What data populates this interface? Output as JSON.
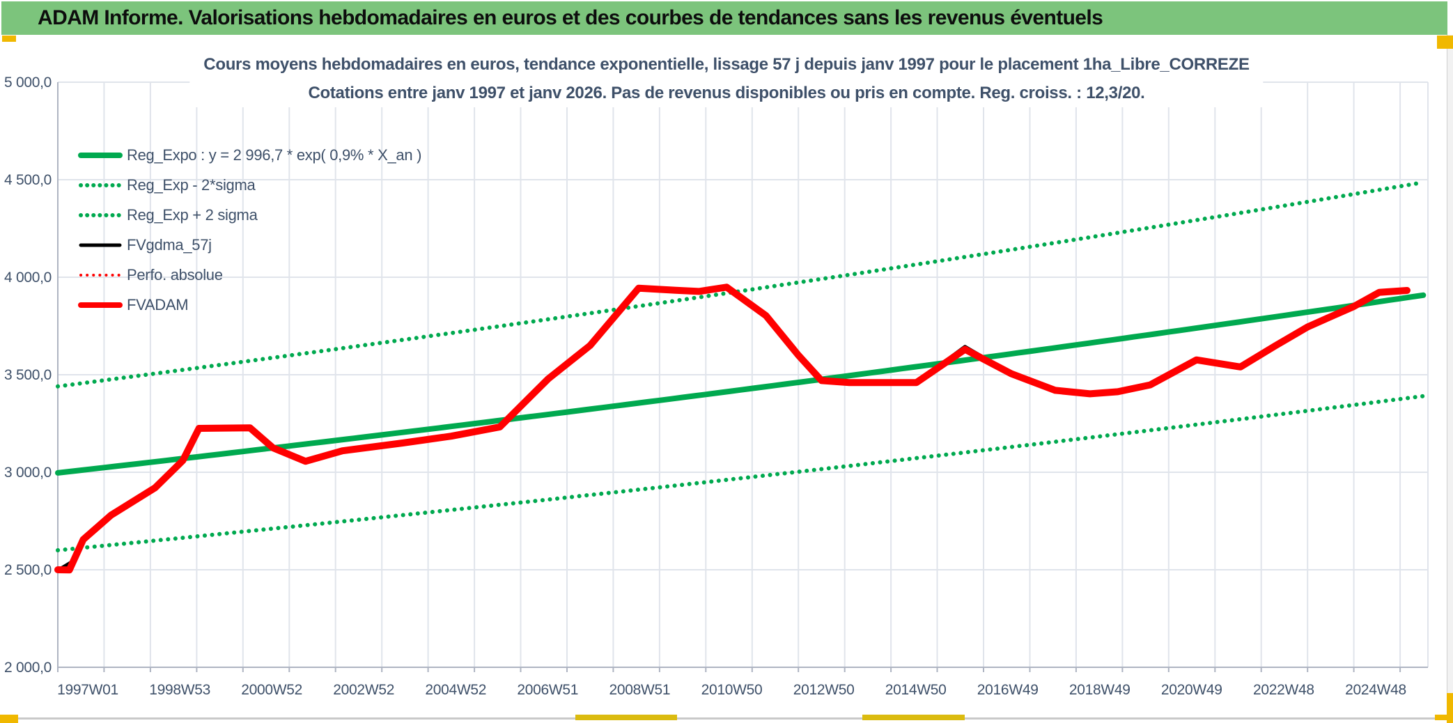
{
  "header": {
    "title": "ADAM Informe. Valorisations hebdomadaires en euros et des courbes de tendances sans les revenus éventuels"
  },
  "colors": {
    "header_green": "#7CC47C",
    "accent_yellow": "#F0B800",
    "accent_yellow_dark": "#DBBB10",
    "axis_text": "#3E5069",
    "gridline": "#E0E4EB",
    "axis_line": "#AEB4C2",
    "series_green": "#00A94F",
    "series_red": "#FF0000",
    "series_black": "#000000"
  },
  "chart_data": {
    "type": "line",
    "title_line1": "Cours moyens hebdomadaires en euros, tendance exponentielle, lissage 57 j depuis janv 1997 pour le placement 1ha_Libre_CORREZE",
    "title_line2": "Cotations entre janv 1997 et janv 2026. Pas de revenus disponibles ou pris en compte. Reg. croiss. : 12,3/20.",
    "ylim": [
      2000,
      5000
    ],
    "x_range_years": [
      1997,
      2026.5
    ],
    "grid": "both",
    "legend_position": "inside-top-left",
    "y_ticks": [
      {
        "value": 5000,
        "label": "5 000,0"
      },
      {
        "value": 4500,
        "label": "4 500,0"
      },
      {
        "value": 4000,
        "label": "4 000,0"
      },
      {
        "value": 3500,
        "label": "3 500,0"
      },
      {
        "value": 3000,
        "label": "3 000,0"
      },
      {
        "value": 2500,
        "label": "2 500,0"
      },
      {
        "value": 2000,
        "label": "2 000,0"
      }
    ],
    "x_ticks": [
      "1997W01",
      "1998W53",
      "2000W52",
      "2002W52",
      "2004W52",
      "2006W51",
      "2008W51",
      "2010W50",
      "2012W50",
      "2014W50",
      "2016W49",
      "2018W49",
      "2020W49",
      "2022W48",
      "2024W48"
    ],
    "series": [
      {
        "id": "reg-exp-minus-2sigma",
        "name": "Reg_Exp - 2*sigma",
        "color": "#00A94F",
        "width": 6,
        "dotted": true,
        "legend_order": 1,
        "exp": {
          "base": 2996.7,
          "rate_pct_per_year": 0.9,
          "factor": 0.8676
        }
      },
      {
        "id": "reg-exp-plus-2sigma",
        "name": "Reg_Exp + 2 sigma",
        "color": "#00A94F",
        "width": 6,
        "dotted": true,
        "legend_order": 2,
        "exp": {
          "base": 2996.7,
          "rate_pct_per_year": 0.9,
          "factor": 1.148
        }
      },
      {
        "id": "reg-expo",
        "name": "Reg_Expo : y = 2 996,7 * exp( 0,9% *  X_an )",
        "color": "#00A94F",
        "width": 8,
        "dotted": false,
        "legend_order": 0,
        "exp": {
          "base": 2996.7,
          "rate_pct_per_year": 0.9,
          "factor": 1.0
        }
      },
      {
        "id": "fvgdma-57j",
        "name": "FVgdma_57j",
        "color": "#000000",
        "width": 5,
        "dotted": false,
        "legend_order": 3,
        "points": [
          [
            1997.0,
            2497
          ],
          [
            1997.3,
            2540
          ],
          [
            1997.6,
            2668
          ],
          [
            1998.15,
            2784
          ],
          [
            1999.1,
            2922
          ],
          [
            1999.7,
            3062
          ],
          [
            2000.05,
            3229
          ],
          [
            2001.15,
            3231
          ],
          [
            2001.65,
            3127
          ],
          [
            2002.35,
            3059
          ],
          [
            2003.15,
            3112
          ],
          [
            2004.45,
            3152
          ],
          [
            2005.5,
            3187
          ],
          [
            2006.55,
            3235
          ],
          [
            2007.6,
            3483
          ],
          [
            2008.5,
            3652
          ],
          [
            2009.0,
            3792
          ],
          [
            2009.55,
            3950
          ],
          [
            2010.35,
            3936
          ],
          [
            2010.85,
            3929
          ],
          [
            2011.45,
            3954
          ],
          [
            2012.3,
            3805
          ],
          [
            2013.0,
            3602
          ],
          [
            2013.5,
            3480
          ],
          [
            2014.1,
            3462
          ],
          [
            2015.55,
            3462
          ],
          [
            2016.6,
            3644
          ],
          [
            2017.6,
            3507
          ],
          [
            2018.55,
            3422
          ],
          [
            2019.3,
            3404
          ],
          [
            2019.9,
            3415
          ],
          [
            2020.6,
            3450
          ],
          [
            2021.6,
            3580
          ],
          [
            2022.55,
            3542
          ],
          [
            2023.3,
            3650
          ],
          [
            2024.0,
            3747
          ],
          [
            2025.0,
            3852
          ],
          [
            2025.55,
            3927
          ],
          [
            2026.15,
            3934
          ]
        ]
      },
      {
        "id": "perfo-absolue",
        "name": "Perfo. absolue",
        "color": "#FF0000",
        "width": 4,
        "dotted": true,
        "legend_order": 4,
        "points": [
          [
            1997.0,
            2500
          ],
          [
            1997.25,
            2499
          ],
          [
            1997.55,
            2655
          ],
          [
            1998.15,
            2780
          ],
          [
            1999.1,
            2920
          ],
          [
            1999.7,
            3060
          ],
          [
            2000.05,
            3225
          ],
          [
            2001.15,
            3228
          ],
          [
            2001.65,
            3125
          ],
          [
            2002.35,
            3056
          ],
          [
            2003.15,
            3110
          ],
          [
            2004.45,
            3150
          ],
          [
            2005.5,
            3185
          ],
          [
            2006.55,
            3232
          ],
          [
            2007.6,
            3480
          ],
          [
            2008.5,
            3650
          ],
          [
            2009.0,
            3790
          ],
          [
            2009.55,
            3944
          ],
          [
            2010.35,
            3933
          ],
          [
            2010.85,
            3927
          ],
          [
            2011.45,
            3949
          ],
          [
            2012.3,
            3803
          ],
          [
            2013.0,
            3600
          ],
          [
            2013.5,
            3470
          ],
          [
            2014.1,
            3460
          ],
          [
            2015.55,
            3460
          ],
          [
            2016.6,
            3630
          ],
          [
            2017.6,
            3505
          ],
          [
            2018.55,
            3420
          ],
          [
            2019.3,
            3402
          ],
          [
            2019.9,
            3413
          ],
          [
            2020.6,
            3448
          ],
          [
            2021.6,
            3576
          ],
          [
            2022.55,
            3540
          ],
          [
            2023.3,
            3648
          ],
          [
            2024.0,
            3745
          ],
          [
            2025.0,
            3850
          ],
          [
            2025.55,
            3922
          ],
          [
            2026.15,
            3932
          ]
        ]
      },
      {
        "id": "fvadam",
        "name": "FVADAM",
        "color": "#FF0000",
        "width": 10,
        "dotted": false,
        "legend_order": 5,
        "points": [
          [
            1997.0,
            2500
          ],
          [
            1997.25,
            2499
          ],
          [
            1997.55,
            2655
          ],
          [
            1998.15,
            2780
          ],
          [
            1999.1,
            2920
          ],
          [
            1999.7,
            3060
          ],
          [
            2000.05,
            3225
          ],
          [
            2001.15,
            3228
          ],
          [
            2001.65,
            3125
          ],
          [
            2002.35,
            3056
          ],
          [
            2003.15,
            3110
          ],
          [
            2004.45,
            3150
          ],
          [
            2005.5,
            3185
          ],
          [
            2006.55,
            3232
          ],
          [
            2007.6,
            3480
          ],
          [
            2008.5,
            3650
          ],
          [
            2009.0,
            3790
          ],
          [
            2009.55,
            3944
          ],
          [
            2010.35,
            3933
          ],
          [
            2010.85,
            3927
          ],
          [
            2011.45,
            3949
          ],
          [
            2012.3,
            3803
          ],
          [
            2013.0,
            3600
          ],
          [
            2013.5,
            3470
          ],
          [
            2014.1,
            3460
          ],
          [
            2015.55,
            3460
          ],
          [
            2016.6,
            3630
          ],
          [
            2017.6,
            3505
          ],
          [
            2018.55,
            3420
          ],
          [
            2019.3,
            3402
          ],
          [
            2019.9,
            3413
          ],
          [
            2020.6,
            3448
          ],
          [
            2021.6,
            3576
          ],
          [
            2022.55,
            3540
          ],
          [
            2023.3,
            3648
          ],
          [
            2024.0,
            3745
          ],
          [
            2025.0,
            3850
          ],
          [
            2025.55,
            3922
          ],
          [
            2026.15,
            3932
          ]
        ]
      }
    ]
  }
}
